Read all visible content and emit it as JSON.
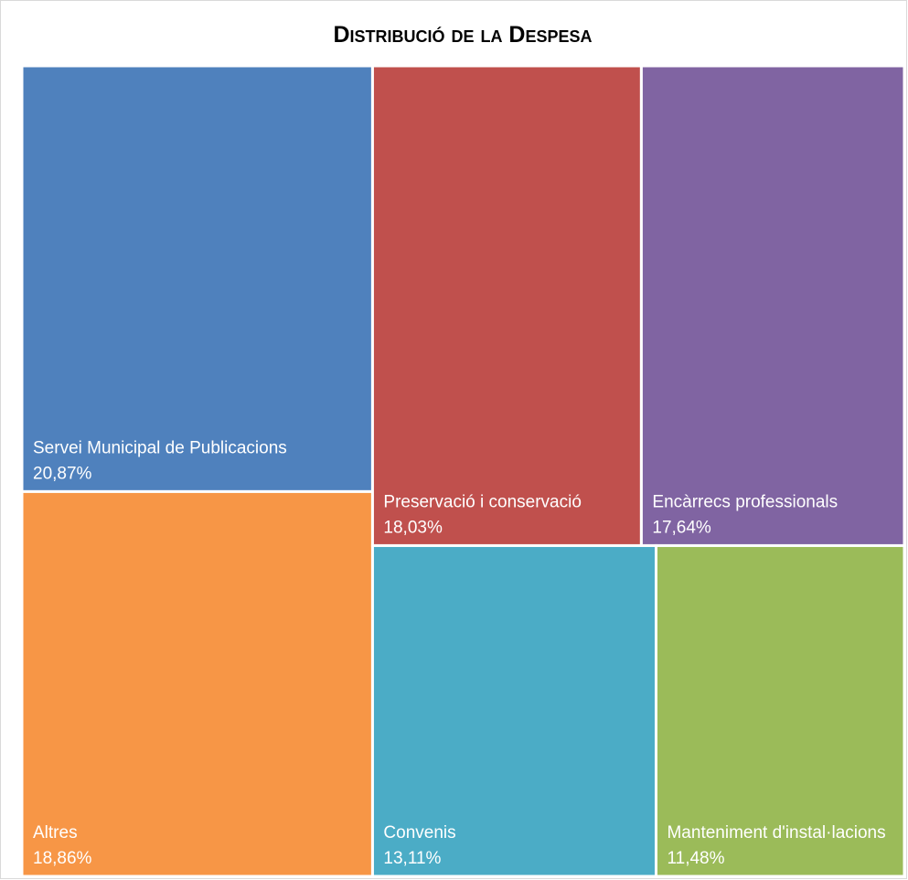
{
  "chart_data": {
    "type": "treemap",
    "title": "Distribució de la Despesa",
    "categories": [
      "Servei Municipal de Publicacions",
      "Altres",
      "Preservació i conservació",
      "Encàrrecs professionals",
      "Convenis",
      "Manteniment d'instal·lacions"
    ],
    "values": [
      20.87,
      18.86,
      18.03,
      17.64,
      13.11,
      11.48
    ],
    "value_labels": [
      "20,87%",
      "18,86%",
      "18,03%",
      "17,64%",
      "13,11%",
      "11,48%"
    ],
    "colors": [
      "#4f81bd",
      "#f79646",
      "#c0504d",
      "#8064a2",
      "#4bacc6",
      "#9bbb59"
    ]
  }
}
